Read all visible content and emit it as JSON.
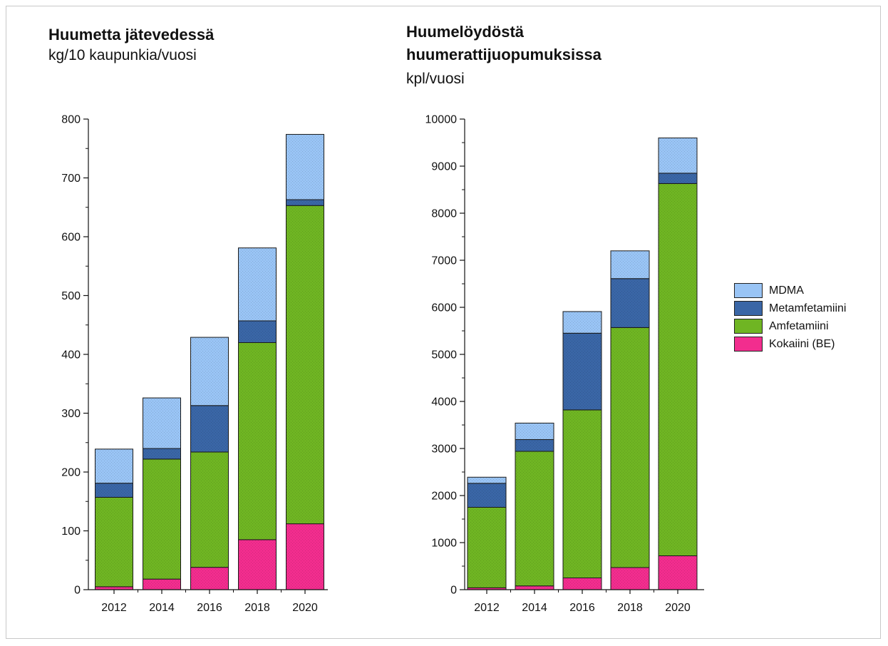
{
  "colors": {
    "MDMA": "#99c4f5",
    "Metamfetamiini": "#3a66a6",
    "Amfetamiini": "#6fb523",
    "Kokaiini (BE)": "#f22d8e"
  },
  "chart_data": [
    {
      "type": "bar",
      "stacked": true,
      "title": "Huumetta jätevedessä",
      "subtitle": "kg/10 kaupunkia/vuosi",
      "categories": [
        "2012",
        "2014",
        "2016",
        "2018",
        "2020"
      ],
      "ylim": [
        0,
        800
      ],
      "yticks": [
        "0",
        "100",
        "200",
        "300",
        "400",
        "500",
        "600",
        "700",
        "800"
      ],
      "series": [
        {
          "name": "Kokaiini (BE)",
          "values": [
            5,
            18,
            38,
            85,
            112
          ]
        },
        {
          "name": "Amfetamiini",
          "values": [
            152,
            204,
            196,
            335,
            541
          ]
        },
        {
          "name": "Metamfetamiini",
          "values": [
            24,
            18,
            79,
            37,
            10
          ]
        },
        {
          "name": "MDMA",
          "values": [
            58,
            86,
            116,
            124,
            111
          ]
        }
      ]
    },
    {
      "type": "bar",
      "stacked": true,
      "title": "Huumelöydöstä huumerattijuopumuksissa",
      "title_lines": [
        "Huumelöydöstä",
        "huumerattijuopumuksissa"
      ],
      "subtitle": "kpl/vuosi",
      "categories": [
        "2012",
        "2014",
        "2016",
        "2018",
        "2020"
      ],
      "ylim": [
        0,
        10000
      ],
      "yticks": [
        "0",
        "1000",
        "2000",
        "3000",
        "4000",
        "5000",
        "6000",
        "7000",
        "8000",
        "9000",
        "10000"
      ],
      "series": [
        {
          "name": "Kokaiini (BE)",
          "values": [
            40,
            80,
            250,
            470,
            720
          ]
        },
        {
          "name": "Amfetamiini",
          "values": [
            1710,
            2860,
            3570,
            5100,
            7910
          ]
        },
        {
          "name": "Metamfetamiini",
          "values": [
            510,
            250,
            1630,
            1040,
            220
          ]
        },
        {
          "name": "MDMA",
          "values": [
            130,
            350,
            460,
            590,
            750
          ]
        }
      ]
    }
  ],
  "legend": {
    "items": [
      "MDMA",
      "Metamfetamiini",
      "Amfetamiini",
      "Kokaiini (BE)"
    ]
  }
}
